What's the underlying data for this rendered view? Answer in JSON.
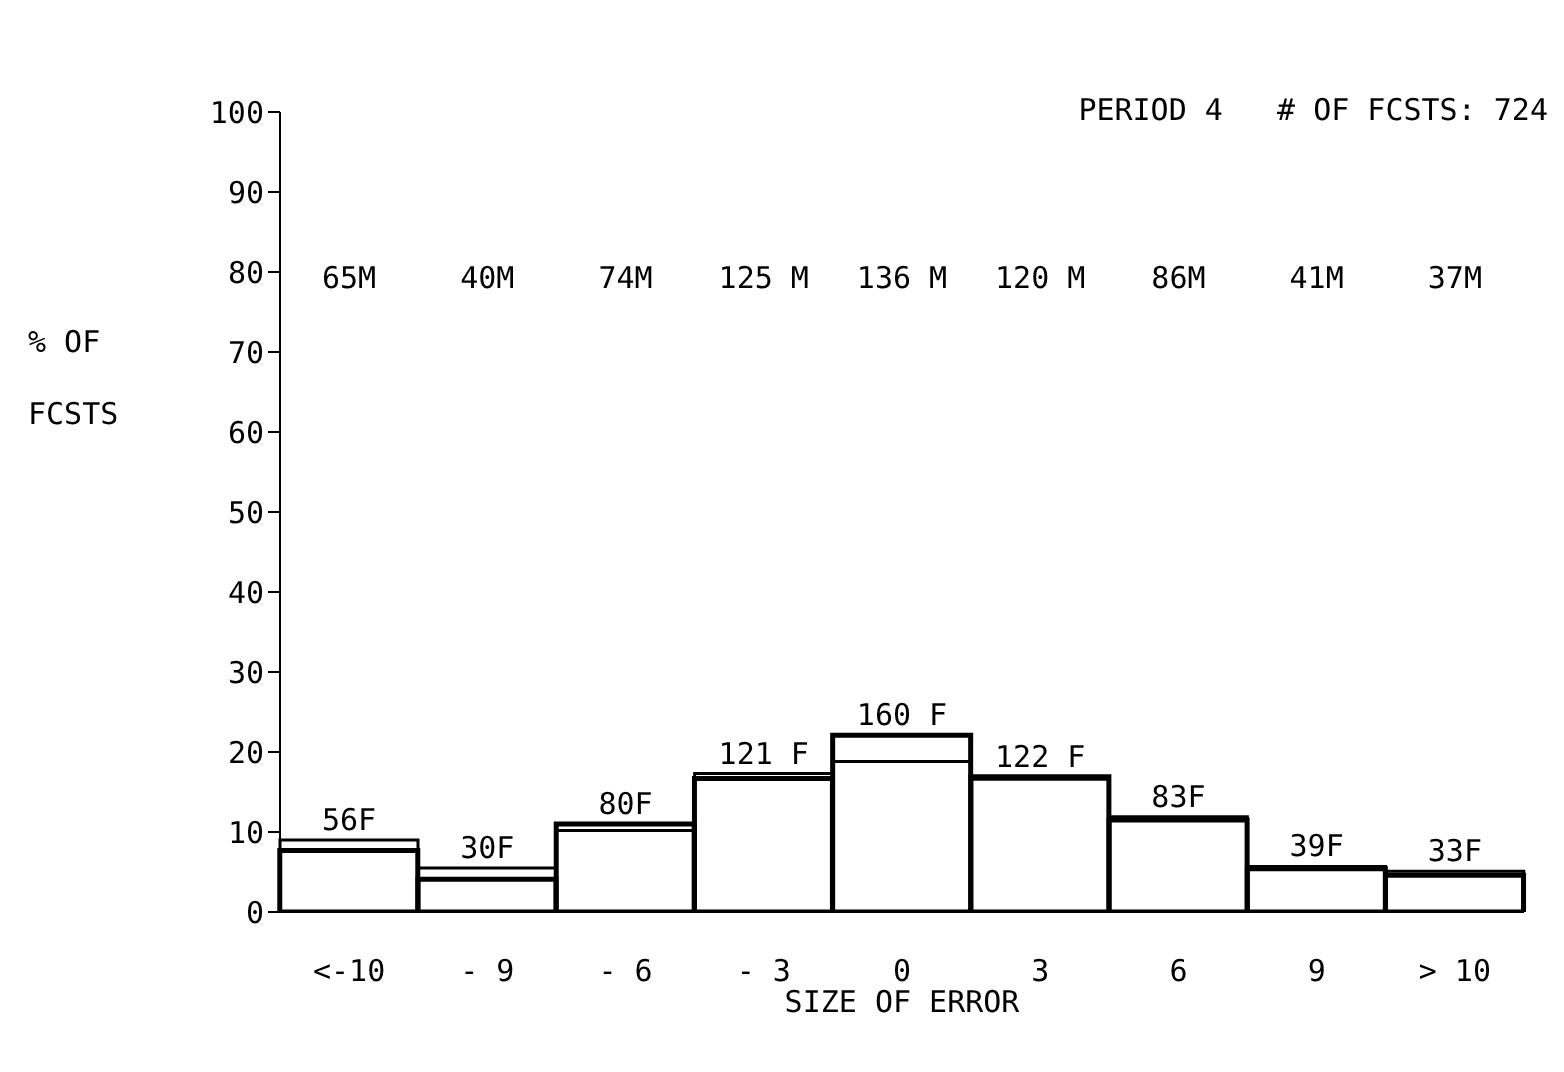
{
  "chart_data": {
    "type": "bar",
    "title": "PERIOD 4   # OF FCSTS: 724",
    "xlabel": "SIZE OF ERROR",
    "ylabel": "% OF FCSTS",
    "categories": [
      "<-10",
      "- 9",
      "- 6",
      "- 3",
      "0",
      "3",
      "6",
      "9",
      "> 10"
    ],
    "series": [
      {
        "color": "#000000",
        "values": [
          9.0,
          5.5,
          10.2,
          17.3,
          18.8,
          16.6,
          11.9,
          5.7,
          5.1
        ]
      },
      {
        "color": "#000000",
        "values": [
          7.7,
          4.1,
          11.0,
          16.7,
          22.1,
          16.9,
          11.5,
          5.4,
          4.6
        ]
      }
    ],
    "annotations": [
      "65M",
      "40M",
      "74M",
      "125 M",
      "136 M",
      "120 M",
      "86M",
      "41M",
      "37M",
      {
        "text": "56F",
        "x": "<-10",
        "y": 7.7
      },
      {
        "text": "30F",
        "x": "- 9",
        "y": 4.1
      },
      {
        "text": "80F",
        "x": "- 6",
        "y": 11.0
      },
      {
        "text": "121 F",
        "x": "- 3",
        "y": 16.7
      },
      {
        "text": "160 F",
        "x": "0",
        "y": 22.1
      },
      {
        "text": "122 F",
        "x": "3",
        "y": 16.9
      },
      {
        "text": "83F",
        "x": "6",
        "y": 11.5
      },
      {
        "text": "39F",
        "x": "9",
        "y": 5.4
      },
      {
        "text": "33F",
        "x": "> 10",
        "y": 4.6
      }
    ],
    "ylim": [
      0,
      100
    ],
    "yticks": [
      0,
      10,
      20,
      30,
      40,
      50,
      60,
      70,
      80,
      90,
      100
    ],
    "grid": false,
    "legend": false
  }
}
